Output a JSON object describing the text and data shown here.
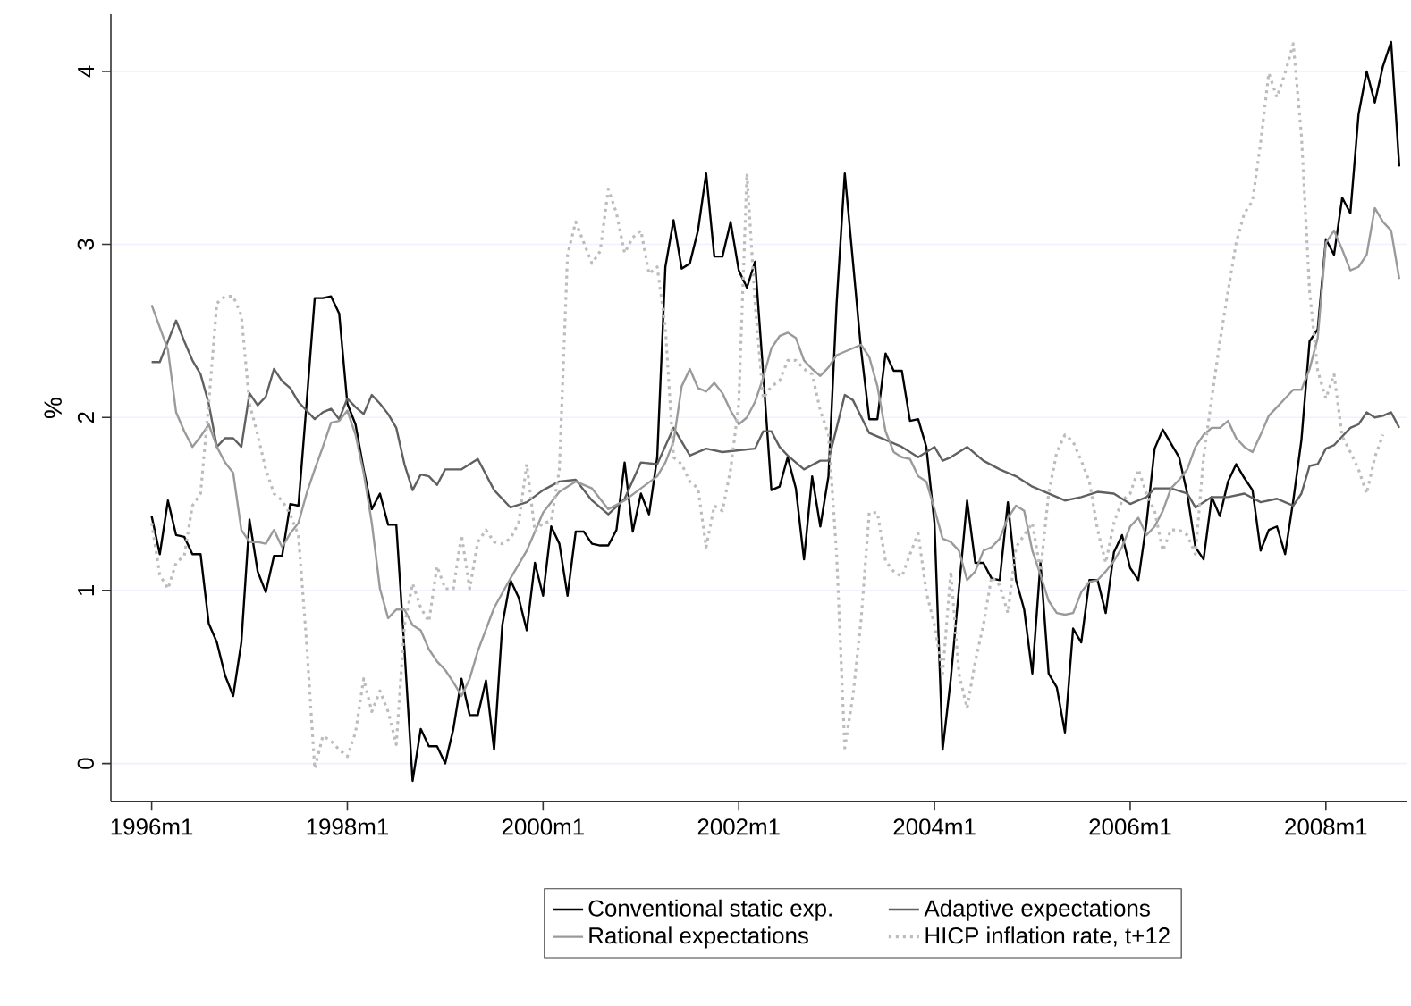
{
  "chart_data": {
    "type": "line",
    "ylabel": "%",
    "xlim": [
      "1995-08",
      "2008-11"
    ],
    "ylim": [
      -0.22,
      4.33
    ],
    "xticks": [
      {
        "value": "1996-01",
        "label": "1996m1"
      },
      {
        "value": "1998-01",
        "label": "1998m1"
      },
      {
        "value": "2000-01",
        "label": "2000m1"
      },
      {
        "value": "2002-01",
        "label": "2002m1"
      },
      {
        "value": "2004-01",
        "label": "2004m1"
      },
      {
        "value": "2006-01",
        "label": "2006m1"
      },
      {
        "value": "2008-01",
        "label": "2008m1"
      }
    ],
    "yticks": [
      0,
      1,
      2,
      3,
      4
    ],
    "grid": "y",
    "legend": "bottom",
    "marker": "none",
    "series": [
      {
        "name": "Conventional static exp.",
        "color": "#000000",
        "line_style": "solid",
        "x": [
          "1996-01",
          "1996-02",
          "1996-03",
          "1996-04",
          "1996-05",
          "1996-06",
          "1996-07",
          "1996-08",
          "1996-09",
          "1996-10",
          "1996-11",
          "1996-12",
          "1997-01",
          "1997-02",
          "1997-03",
          "1997-04",
          "1997-05",
          "1997-06",
          "1997-07",
          "1997-08",
          "1997-09",
          "1997-10",
          "1997-11",
          "1997-12",
          "1998-01",
          "1998-02",
          "1998-03",
          "1998-04",
          "1998-05",
          "1998-06",
          "1998-07",
          "1998-08",
          "1998-09",
          "1998-10",
          "1998-11",
          "1998-12",
          "1999-01",
          "1999-02",
          "1999-03",
          "1999-04",
          "1999-05",
          "1999-06",
          "1999-07",
          "1999-08",
          "1999-09",
          "1999-10",
          "1999-11",
          "1999-12",
          "2000-01",
          "2000-02",
          "2000-03",
          "2000-04",
          "2000-05",
          "2000-06",
          "2000-07",
          "2000-08",
          "2000-09",
          "2000-10",
          "2000-11",
          "2000-12",
          "2001-01",
          "2001-02",
          "2001-03",
          "2001-04",
          "2001-05",
          "2001-06",
          "2001-07",
          "2001-08",
          "2001-09",
          "2001-10",
          "2001-11",
          "2001-12",
          "2002-01",
          "2002-02",
          "2002-03",
          "2002-04",
          "2002-05",
          "2002-06",
          "2002-07",
          "2002-08",
          "2002-09",
          "2002-10",
          "2002-11",
          "2002-12",
          "2003-01",
          "2003-02",
          "2003-03",
          "2003-04",
          "2003-05",
          "2003-06",
          "2003-07",
          "2003-08",
          "2003-09",
          "2003-10",
          "2003-11",
          "2003-12",
          "2004-01",
          "2004-02",
          "2004-03",
          "2004-04",
          "2004-05",
          "2004-06",
          "2004-07",
          "2004-08",
          "2004-09",
          "2004-10",
          "2004-11",
          "2004-12",
          "2005-01",
          "2005-02",
          "2005-03",
          "2005-04",
          "2005-05",
          "2005-06",
          "2005-07",
          "2005-08",
          "2005-09",
          "2005-10",
          "2005-11",
          "2005-12",
          "2006-01",
          "2006-02",
          "2006-03",
          "2006-04",
          "2006-05",
          "2006-06",
          "2006-07",
          "2006-08",
          "2006-09",
          "2006-10",
          "2006-11",
          "2006-12",
          "2007-01",
          "2007-02",
          "2007-03",
          "2007-04",
          "2007-05",
          "2007-06",
          "2007-07",
          "2007-08",
          "2007-09",
          "2007-10",
          "2007-11",
          "2007-12",
          "2008-01",
          "2008-02",
          "2008-03",
          "2008-04",
          "2008-05",
          "2008-06",
          "2008-07",
          "2008-08",
          "2008-09",
          "2008-10"
        ],
        "values": [
          1.43,
          1.21,
          1.52,
          1.32,
          1.31,
          1.21,
          1.21,
          0.81,
          0.7,
          0.51,
          0.39,
          0.7,
          1.41,
          1.11,
          0.99,
          1.2,
          1.2,
          1.5,
          1.49,
          2.08,
          2.69,
          2.69,
          2.7,
          2.6,
          2.08,
          1.96,
          1.7,
          1.47,
          1.56,
          1.38,
          1.38,
          0.66,
          -0.1,
          0.2,
          0.1,
          0.1,
          0.0,
          0.2,
          0.49,
          0.28,
          0.28,
          0.48,
          0.08,
          0.8,
          1.06,
          0.96,
          0.77,
          1.16,
          0.97,
          1.37,
          1.27,
          0.97,
          1.34,
          1.34,
          1.27,
          1.26,
          1.26,
          1.35,
          1.74,
          1.34,
          1.56,
          1.44,
          1.77,
          2.87,
          3.14,
          2.86,
          2.89,
          3.08,
          3.41,
          2.93,
          2.93,
          3.13,
          2.85,
          2.75,
          2.9,
          2.25,
          1.58,
          1.6,
          1.77,
          1.59,
          1.18,
          1.66,
          1.37,
          1.66,
          2.66,
          3.41,
          2.9,
          2.39,
          1.99,
          1.99,
          2.37,
          2.27,
          2.27,
          1.98,
          1.99,
          1.83,
          1.39,
          0.08,
          0.49,
          1.01,
          1.52,
          1.16,
          1.16,
          1.07,
          1.06,
          1.51,
          1.06,
          0.89,
          0.52,
          1.16,
          0.52,
          0.44,
          0.18,
          0.78,
          0.7,
          1.06,
          1.06,
          0.87,
          1.22,
          1.32,
          1.13,
          1.06,
          1.39,
          1.82,
          1.93,
          1.85,
          1.77,
          1.56,
          1.25,
          1.18,
          1.54,
          1.43,
          1.63,
          1.73,
          1.65,
          1.58,
          1.23,
          1.35,
          1.37,
          1.21,
          1.52,
          1.87,
          2.44,
          2.51,
          3.03,
          2.94,
          3.27,
          3.18,
          3.75,
          4.0,
          3.82,
          4.03,
          4.17,
          3.45
        ]
      },
      {
        "name": "Adaptive expectations",
        "color": "#606060",
        "line_style": "solid",
        "x": [
          "1996-01",
          "1996-02",
          "1996-03",
          "1996-04",
          "1996-05",
          "1996-06",
          "1996-07",
          "1996-08",
          "1996-09",
          "1996-10",
          "1996-11",
          "1996-12",
          "1997-01",
          "1997-02",
          "1997-03",
          "1997-04",
          "1997-05",
          "1997-06",
          "1997-07",
          "1997-08",
          "1997-09",
          "1997-10",
          "1997-11",
          "1997-12",
          "1998-01",
          "1998-02",
          "1998-03",
          "1998-04",
          "1998-05",
          "1998-06",
          "1998-07",
          "1998-08",
          "1998-09",
          "1998-10",
          "1998-11",
          "1998-12",
          "1999-01",
          "1999-03",
          "1999-05",
          "1999-07",
          "1999-09",
          "1999-11",
          "2000-01",
          "2000-03",
          "2000-05",
          "2000-07",
          "2000-09",
          "2000-11",
          "2001-01",
          "2001-03",
          "2001-05",
          "2001-07",
          "2001-09",
          "2001-11",
          "2002-01",
          "2002-03",
          "2002-04",
          "2002-05",
          "2002-06",
          "2002-07",
          "2002-09",
          "2002-11",
          "2002-12",
          "2003-01",
          "2003-02",
          "2003-03",
          "2003-05",
          "2003-07",
          "2003-09",
          "2003-11",
          "2004-01",
          "2004-02",
          "2004-03",
          "2004-05",
          "2004-07",
          "2004-09",
          "2004-11",
          "2005-01",
          "2005-03",
          "2005-05",
          "2005-07",
          "2005-09",
          "2005-11",
          "2006-01",
          "2006-03",
          "2006-04",
          "2006-06",
          "2006-08",
          "2006-09",
          "2006-11",
          "2007-01",
          "2007-03",
          "2007-05",
          "2007-07",
          "2007-08",
          "2007-09",
          "2007-10",
          "2007-11",
          "2007-12",
          "2008-01",
          "2008-02",
          "2008-03",
          "2008-04",
          "2008-05",
          "2008-06",
          "2008-07",
          "2008-08",
          "2008-09",
          "2008-10"
        ],
        "values": [
          2.32,
          2.32,
          2.44,
          2.56,
          2.44,
          2.33,
          2.25,
          2.08,
          1.83,
          1.88,
          1.88,
          1.83,
          2.14,
          2.07,
          2.12,
          2.28,
          2.21,
          2.17,
          2.09,
          2.04,
          1.99,
          2.03,
          2.05,
          1.99,
          2.11,
          2.06,
          2.02,
          2.13,
          2.08,
          2.02,
          1.94,
          1.73,
          1.58,
          1.67,
          1.66,
          1.61,
          1.7,
          1.7,
          1.76,
          1.58,
          1.48,
          1.51,
          1.58,
          1.63,
          1.64,
          1.52,
          1.44,
          1.53,
          1.74,
          1.73,
          1.94,
          1.78,
          1.82,
          1.8,
          1.81,
          1.82,
          1.92,
          1.92,
          1.83,
          1.78,
          1.7,
          1.75,
          1.75,
          1.94,
          2.13,
          2.1,
          1.91,
          1.87,
          1.83,
          1.77,
          1.83,
          1.75,
          1.77,
          1.83,
          1.75,
          1.7,
          1.66,
          1.6,
          1.56,
          1.52,
          1.54,
          1.57,
          1.56,
          1.5,
          1.54,
          1.59,
          1.59,
          1.56,
          1.48,
          1.54,
          1.54,
          1.56,
          1.51,
          1.53,
          1.51,
          1.49,
          1.56,
          1.72,
          1.73,
          1.82,
          1.84,
          1.89,
          1.94,
          1.96,
          2.03,
          2.0,
          2.01,
          2.03,
          1.94
        ]
      },
      {
        "name": "Rational expectations",
        "color": "#9a9a9a",
        "line_style": "solid",
        "x": [
          "1996-01",
          "1996-03",
          "1996-04",
          "1996-05",
          "1996-06",
          "1996-07",
          "1996-08",
          "1996-09",
          "1996-10",
          "1996-11",
          "1996-12",
          "1997-01",
          "1997-02",
          "1997-03",
          "1997-04",
          "1997-05",
          "1997-06",
          "1997-07",
          "1997-08",
          "1997-09",
          "1997-10",
          "1997-11",
          "1997-12",
          "1998-01",
          "1998-02",
          "1998-03",
          "1998-04",
          "1998-05",
          "1998-06",
          "1998-07",
          "1998-08",
          "1998-09",
          "1998-10",
          "1998-11",
          "1998-12",
          "1999-01",
          "1999-02",
          "1999-03",
          "1999-04",
          "1999-05",
          "1999-07",
          "1999-09",
          "1999-11",
          "2000-01",
          "2000-03",
          "2000-05",
          "2000-07",
          "2000-09",
          "2000-11",
          "2001-01",
          "2001-03",
          "2001-04",
          "2001-05",
          "2001-06",
          "2001-07",
          "2001-08",
          "2001-09",
          "2001-10",
          "2001-11",
          "2001-12",
          "2002-01",
          "2002-02",
          "2002-03",
          "2002-04",
          "2002-05",
          "2002-06",
          "2002-07",
          "2002-08",
          "2002-09",
          "2002-10",
          "2002-11",
          "2002-12",
          "2003-01",
          "2003-03",
          "2003-04",
          "2003-05",
          "2003-06",
          "2003-07",
          "2003-08",
          "2003-09",
          "2003-10",
          "2003-11",
          "2003-12",
          "2004-01",
          "2004-02",
          "2004-03",
          "2004-04",
          "2004-05",
          "2004-06",
          "2004-07",
          "2004-08",
          "2004-09",
          "2004-10",
          "2004-11",
          "2004-12",
          "2005-01",
          "2005-02",
          "2005-03",
          "2005-04",
          "2005-05",
          "2005-06",
          "2005-07",
          "2005-08",
          "2005-09",
          "2005-10",
          "2005-11",
          "2005-12",
          "2006-01",
          "2006-02",
          "2006-03",
          "2006-04",
          "2006-05",
          "2006-06",
          "2006-07",
          "2006-08",
          "2006-09",
          "2006-10",
          "2006-11",
          "2006-12",
          "2007-01",
          "2007-02",
          "2007-03",
          "2007-04",
          "2007-05",
          "2007-06",
          "2007-07",
          "2007-08",
          "2007-09",
          "2007-10",
          "2007-11",
          "2007-12",
          "2008-01",
          "2008-02",
          "2008-03",
          "2008-04",
          "2008-05",
          "2008-06",
          "2008-07",
          "2008-08",
          "2008-09",
          "2008-10"
        ],
        "values": [
          2.65,
          2.39,
          2.03,
          1.92,
          1.83,
          1.89,
          1.96,
          1.83,
          1.74,
          1.68,
          1.35,
          1.28,
          1.28,
          1.27,
          1.35,
          1.25,
          1.33,
          1.39,
          1.56,
          1.7,
          1.83,
          1.97,
          1.98,
          2.04,
          1.9,
          1.68,
          1.39,
          1.01,
          0.84,
          0.89,
          0.89,
          0.8,
          0.77,
          0.66,
          0.59,
          0.54,
          0.47,
          0.39,
          0.49,
          0.65,
          0.9,
          1.07,
          1.23,
          1.45,
          1.57,
          1.63,
          1.59,
          1.47,
          1.52,
          1.59,
          1.66,
          1.74,
          1.86,
          2.18,
          2.28,
          2.17,
          2.15,
          2.2,
          2.14,
          2.04,
          1.96,
          2.0,
          2.09,
          2.23,
          2.4,
          2.47,
          2.49,
          2.46,
          2.33,
          2.28,
          2.24,
          2.29,
          2.36,
          2.4,
          2.42,
          2.35,
          2.18,
          1.92,
          1.8,
          1.77,
          1.76,
          1.66,
          1.63,
          1.47,
          1.3,
          1.28,
          1.23,
          1.06,
          1.11,
          1.23,
          1.25,
          1.3,
          1.42,
          1.49,
          1.46,
          1.23,
          1.09,
          0.94,
          0.87,
          0.86,
          0.87,
          0.99,
          1.05,
          1.06,
          1.11,
          1.17,
          1.25,
          1.37,
          1.42,
          1.32,
          1.37,
          1.46,
          1.59,
          1.64,
          1.7,
          1.83,
          1.9,
          1.94,
          1.94,
          1.98,
          1.88,
          1.83,
          1.8,
          1.9,
          2.01,
          2.06,
          2.11,
          2.16,
          2.16,
          2.28,
          2.46,
          3.01,
          3.08,
          2.97,
          2.85,
          2.87,
          2.94,
          3.21,
          3.13,
          3.08,
          2.8
        ]
      },
      {
        "name": "HICP inflation rate, t+12",
        "color": "#bcbcbc",
        "line_style": "dotted",
        "x": [
          "1996-01",
          "1996-02",
          "1996-03",
          "1996-04",
          "1996-05",
          "1996-06",
          "1996-07",
          "1996-08",
          "1996-09",
          "1996-10",
          "1996-11",
          "1996-12",
          "1997-01",
          "1997-02",
          "1997-03",
          "1997-04",
          "1997-05",
          "1997-06",
          "1997-07",
          "1997-08",
          "1997-09",
          "1997-10",
          "1997-11",
          "1997-12",
          "1998-01",
          "1998-02",
          "1998-03",
          "1998-04",
          "1998-05",
          "1998-06",
          "1998-07",
          "1998-08",
          "1998-09",
          "1998-10",
          "1998-11",
          "1998-12",
          "1999-01",
          "1999-02",
          "1999-03",
          "1999-04",
          "1999-05",
          "1999-06",
          "1999-07",
          "1999-08",
          "1999-09",
          "1999-10",
          "1999-11",
          "1999-12",
          "2000-01",
          "2000-02",
          "2000-03",
          "2000-04",
          "2000-05",
          "2000-06",
          "2000-07",
          "2000-08",
          "2000-09",
          "2000-10",
          "2000-11",
          "2000-12",
          "2001-01",
          "2001-02",
          "2001-03",
          "2001-04",
          "2001-05",
          "2001-06",
          "2001-07",
          "2001-08",
          "2001-09",
          "2001-10",
          "2001-11",
          "2001-12",
          "2002-01",
          "2002-02",
          "2002-03",
          "2002-04",
          "2002-05",
          "2002-06",
          "2002-07",
          "2002-08",
          "2002-09",
          "2002-10",
          "2002-11",
          "2002-12",
          "2003-01",
          "2003-02",
          "2003-03",
          "2003-04",
          "2003-05",
          "2003-06",
          "2003-07",
          "2003-08",
          "2003-09",
          "2003-10",
          "2003-11",
          "2003-12",
          "2004-01",
          "2004-02",
          "2004-03",
          "2004-04",
          "2004-05",
          "2004-06",
          "2004-07",
          "2004-08",
          "2004-09",
          "2004-10",
          "2004-11",
          "2004-12",
          "2005-01",
          "2005-02",
          "2005-03",
          "2005-04",
          "2005-05",
          "2005-06",
          "2005-07",
          "2005-08",
          "2005-09",
          "2005-10",
          "2005-11",
          "2005-12",
          "2006-01",
          "2006-02",
          "2006-03",
          "2006-04",
          "2006-05",
          "2006-06",
          "2006-07",
          "2006-08",
          "2006-09",
          "2006-10",
          "2006-11",
          "2006-12",
          "2007-01",
          "2007-02",
          "2007-03",
          "2007-04",
          "2007-05",
          "2007-06",
          "2007-07",
          "2007-08",
          "2007-09",
          "2007-10",
          "2007-11",
          "2007-12",
          "2008-01",
          "2008-02",
          "2008-03",
          "2008-04",
          "2008-05",
          "2008-06",
          "2008-07",
          "2008-08"
        ],
        "values": [
          1.39,
          1.09,
          1.01,
          1.16,
          1.2,
          1.49,
          1.56,
          2.08,
          2.66,
          2.7,
          2.7,
          2.59,
          2.08,
          1.9,
          1.7,
          1.56,
          1.52,
          1.44,
          1.32,
          0.7,
          -0.03,
          0.16,
          0.13,
          0.08,
          0.04,
          0.18,
          0.49,
          0.3,
          0.42,
          0.3,
          0.11,
          0.8,
          1.04,
          0.9,
          0.82,
          1.14,
          1.01,
          1.01,
          1.32,
          1.01,
          1.28,
          1.35,
          1.28,
          1.27,
          1.3,
          1.39,
          1.73,
          1.34,
          1.39,
          1.4,
          1.7,
          2.94,
          3.13,
          3.01,
          2.89,
          2.96,
          3.32,
          3.18,
          2.95,
          3.04,
          3.08,
          2.83,
          2.87,
          2.52,
          1.77,
          1.73,
          1.63,
          1.59,
          1.25,
          1.49,
          1.46,
          1.7,
          2.08,
          3.41,
          2.66,
          2.11,
          2.18,
          2.21,
          2.33,
          2.33,
          2.28,
          2.25,
          2.04,
          1.9,
          1.21,
          0.09,
          0.39,
          0.83,
          1.45,
          1.45,
          1.17,
          1.11,
          1.08,
          1.21,
          1.33,
          0.99,
          0.8,
          0.52,
          1.11,
          0.52,
          0.32,
          0.59,
          0.8,
          1.08,
          1.03,
          0.87,
          1.25,
          1.32,
          1.39,
          1.11,
          1.56,
          1.8,
          1.9,
          1.86,
          1.75,
          1.63,
          1.35,
          1.16,
          1.39,
          1.52,
          1.56,
          1.7,
          1.56,
          1.46,
          1.23,
          1.35,
          1.35,
          1.32,
          1.21,
          1.77,
          2.11,
          2.44,
          2.73,
          3.01,
          3.18,
          3.25,
          3.59,
          3.99,
          3.85,
          3.99,
          4.16,
          3.63,
          2.73,
          2.27,
          2.11,
          2.25,
          1.89,
          1.8,
          1.7,
          1.56,
          1.77,
          1.9
        ]
      }
    ]
  }
}
